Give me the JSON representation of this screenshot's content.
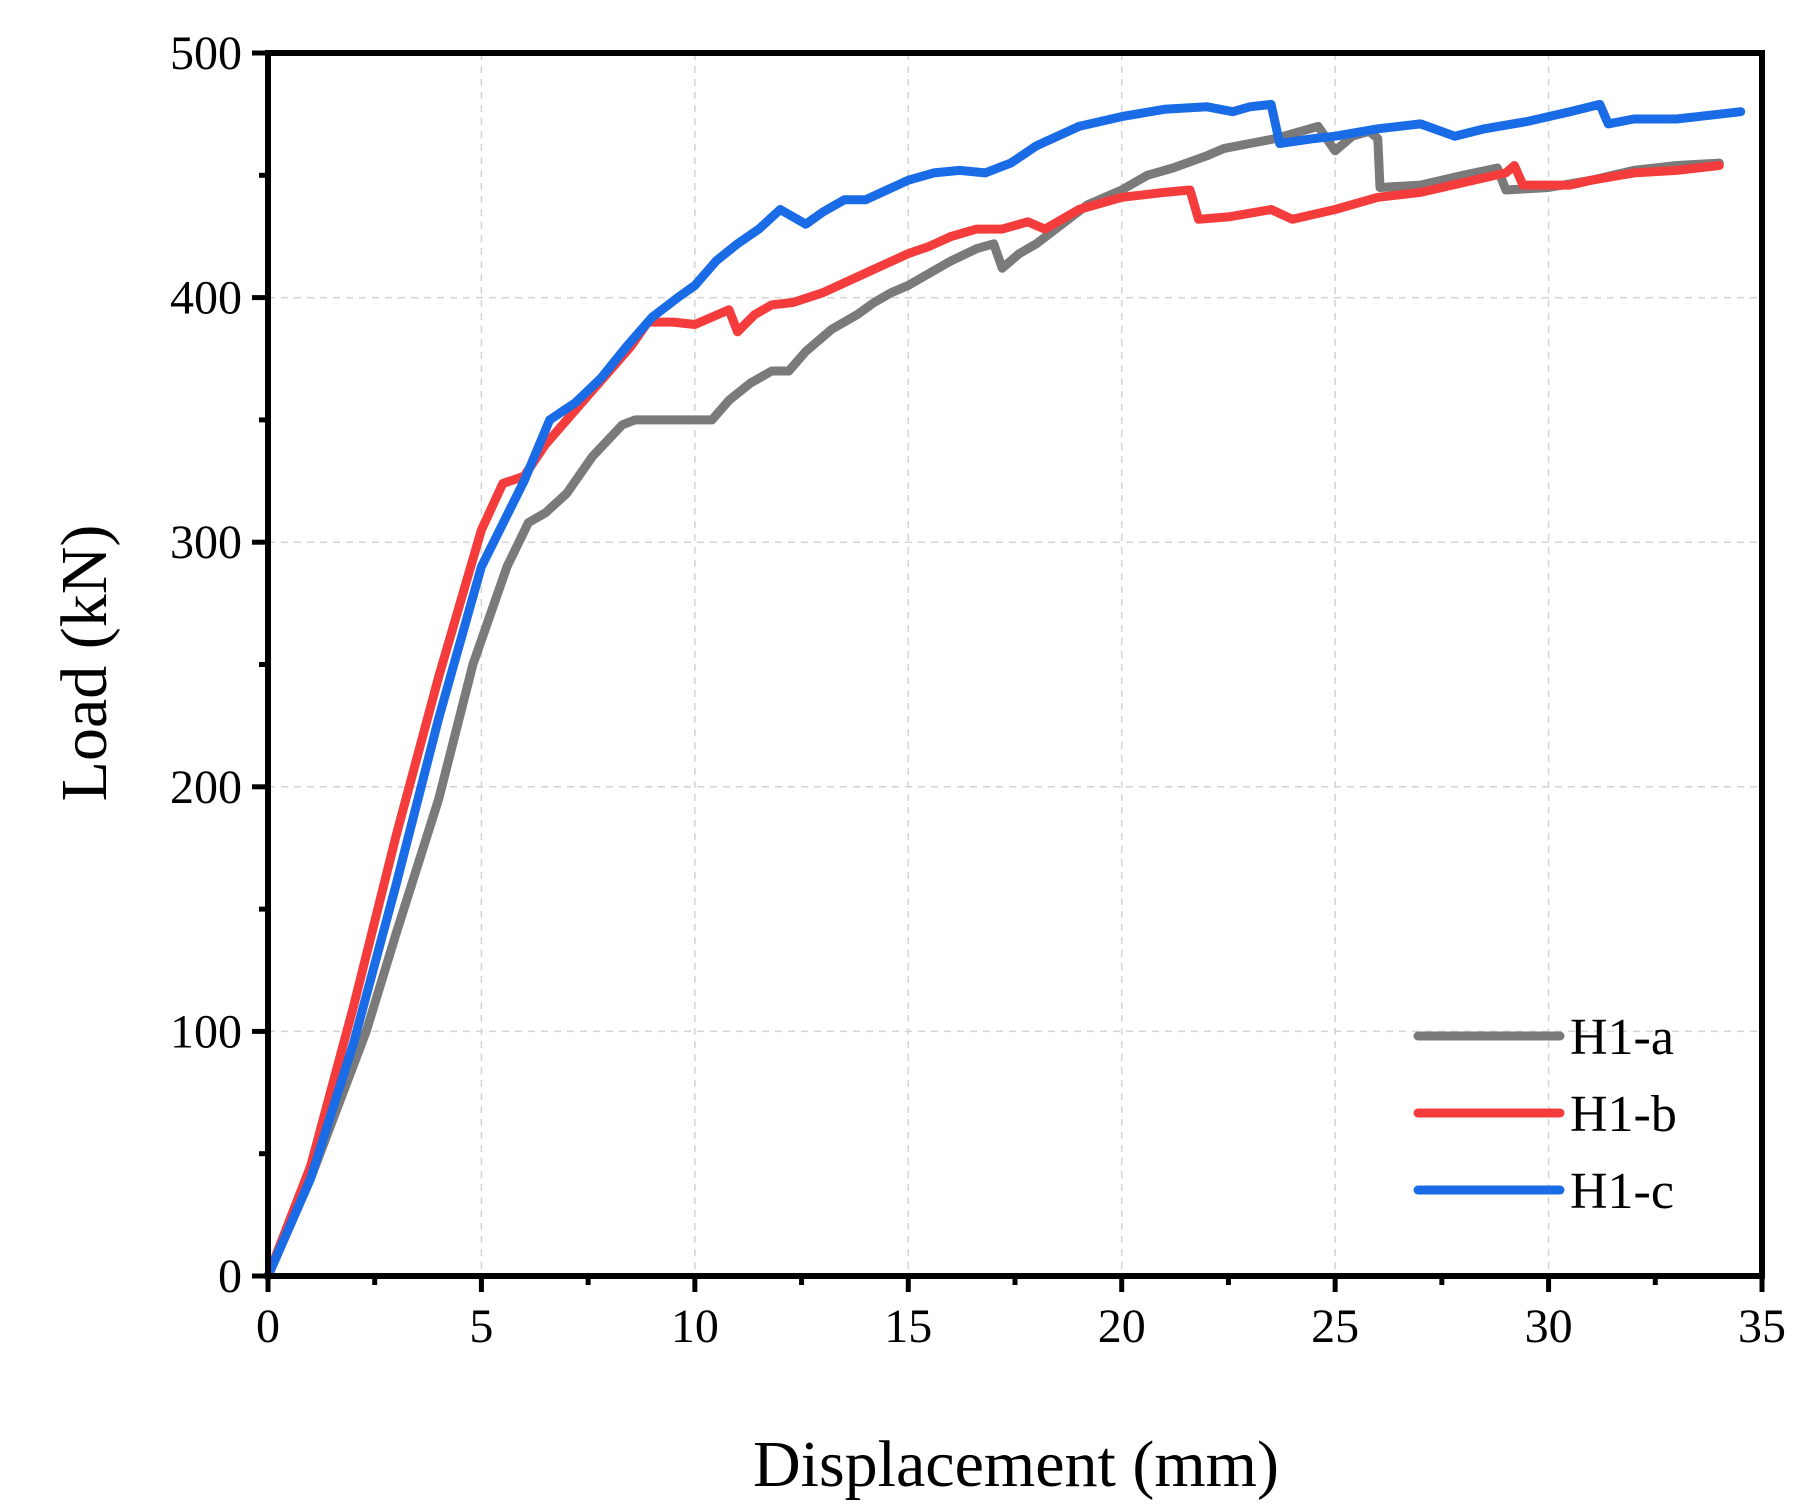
{
  "chart_data": {
    "type": "line",
    "title": "",
    "xlabel": "Displacement (mm)",
    "ylabel": "Load (kN)",
    "xlim": [
      0,
      35
    ],
    "ylim": [
      0,
      500
    ],
    "xticks": [
      0,
      5,
      10,
      15,
      20,
      25,
      30,
      35
    ],
    "yticks": [
      0,
      100,
      200,
      300,
      400,
      500
    ],
    "x_minor_step": 2.5,
    "y_minor_step": 50,
    "grid": true,
    "legend_position": "bottom-right",
    "series": [
      {
        "name": "H1-a",
        "color": "#7a7a7a",
        "points": [
          [
            0,
            0
          ],
          [
            1,
            40
          ],
          [
            2.3,
            100
          ],
          [
            3,
            140
          ],
          [
            4,
            195
          ],
          [
            4.8,
            250
          ],
          [
            5.6,
            290
          ],
          [
            6.1,
            308
          ],
          [
            6.5,
            312
          ],
          [
            7,
            320
          ],
          [
            7.6,
            335
          ],
          [
            8.3,
            348
          ],
          [
            8.6,
            350
          ],
          [
            10.4,
            350
          ],
          [
            10.8,
            358
          ],
          [
            11.3,
            365
          ],
          [
            11.8,
            370
          ],
          [
            12.2,
            370
          ],
          [
            12.6,
            378
          ],
          [
            13.2,
            387
          ],
          [
            13.8,
            393
          ],
          [
            14.2,
            398
          ],
          [
            14.6,
            402
          ],
          [
            15,
            405
          ],
          [
            15.5,
            410
          ],
          [
            16,
            415
          ],
          [
            16.6,
            420
          ],
          [
            17,
            422
          ],
          [
            17.2,
            412
          ],
          [
            17.6,
            418
          ],
          [
            18,
            422
          ],
          [
            18.6,
            430
          ],
          [
            19.2,
            438
          ],
          [
            20,
            444
          ],
          [
            20.6,
            450
          ],
          [
            21.2,
            453
          ],
          [
            22,
            458
          ],
          [
            22.4,
            461
          ],
          [
            23,
            463
          ],
          [
            23.6,
            465
          ],
          [
            24,
            467
          ],
          [
            24.6,
            470
          ],
          [
            25,
            460
          ],
          [
            25.4,
            466
          ],
          [
            25.8,
            468
          ],
          [
            26,
            465
          ],
          [
            26.05,
            445
          ],
          [
            27,
            446
          ],
          [
            28,
            450
          ],
          [
            28.8,
            453
          ],
          [
            29,
            444
          ],
          [
            30,
            445
          ],
          [
            31,
            448
          ],
          [
            32,
            452
          ],
          [
            33,
            454
          ],
          [
            34,
            455
          ]
        ]
      },
      {
        "name": "H1-b",
        "color": "#f53c3c",
        "points": [
          [
            0,
            0
          ],
          [
            1,
            45
          ],
          [
            2,
            110
          ],
          [
            3,
            180
          ],
          [
            4,
            245
          ],
          [
            5,
            305
          ],
          [
            5.5,
            324
          ],
          [
            6,
            327
          ],
          [
            6.5,
            340
          ],
          [
            7,
            350
          ],
          [
            7.5,
            360
          ],
          [
            8,
            370
          ],
          [
            8.5,
            380
          ],
          [
            8.9,
            390
          ],
          [
            9.5,
            390
          ],
          [
            10,
            389
          ],
          [
            10.8,
            395
          ],
          [
            11,
            386
          ],
          [
            11.4,
            393
          ],
          [
            11.8,
            397
          ],
          [
            12.3,
            398
          ],
          [
            13,
            402
          ],
          [
            14,
            410
          ],
          [
            15,
            418
          ],
          [
            15.5,
            421
          ],
          [
            16,
            425
          ],
          [
            16.6,
            428
          ],
          [
            17.2,
            428
          ],
          [
            17.8,
            431
          ],
          [
            18.2,
            428
          ],
          [
            19,
            436
          ],
          [
            20,
            441
          ],
          [
            21,
            443
          ],
          [
            21.6,
            444
          ],
          [
            21.8,
            432
          ],
          [
            22.5,
            433
          ],
          [
            23.5,
            436
          ],
          [
            24,
            432
          ],
          [
            25,
            436
          ],
          [
            26,
            441
          ],
          [
            27,
            443
          ],
          [
            28,
            447
          ],
          [
            29,
            451
          ],
          [
            29.2,
            454
          ],
          [
            29.4,
            446
          ],
          [
            30.5,
            446
          ],
          [
            31,
            448
          ],
          [
            32,
            451
          ],
          [
            33,
            452
          ],
          [
            34,
            454
          ]
        ]
      },
      {
        "name": "H1-c",
        "color": "#1a6be6",
        "points": [
          [
            0,
            0
          ],
          [
            1,
            40
          ],
          [
            2,
            95
          ],
          [
            3,
            160
          ],
          [
            4,
            228
          ],
          [
            5,
            290
          ],
          [
            6,
            325
          ],
          [
            6.6,
            350
          ],
          [
            7.2,
            357
          ],
          [
            7.8,
            367
          ],
          [
            8.4,
            380
          ],
          [
            9,
            392
          ],
          [
            9.6,
            400
          ],
          [
            10,
            405
          ],
          [
            10.5,
            415
          ],
          [
            11,
            422
          ],
          [
            11.5,
            428
          ],
          [
            12,
            436
          ],
          [
            12.6,
            430
          ],
          [
            13,
            435
          ],
          [
            13.5,
            440
          ],
          [
            14,
            440
          ],
          [
            14.5,
            444
          ],
          [
            15,
            448
          ],
          [
            15.6,
            451
          ],
          [
            16.2,
            452
          ],
          [
            16.8,
            451
          ],
          [
            17.4,
            455
          ],
          [
            18,
            462
          ],
          [
            19,
            470
          ],
          [
            20,
            474
          ],
          [
            21,
            477
          ],
          [
            22,
            478
          ],
          [
            22.6,
            476
          ],
          [
            23,
            478
          ],
          [
            23.5,
            479
          ],
          [
            23.7,
            463
          ],
          [
            24.5,
            465
          ],
          [
            25,
            466
          ],
          [
            26,
            469
          ],
          [
            27,
            471
          ],
          [
            27.8,
            466
          ],
          [
            28.5,
            469
          ],
          [
            29.5,
            472
          ],
          [
            30.5,
            476
          ],
          [
            31.2,
            479
          ],
          [
            31.4,
            471
          ],
          [
            32,
            473
          ],
          [
            33,
            473
          ],
          [
            34,
            475
          ],
          [
            34.5,
            476
          ]
        ]
      }
    ]
  }
}
